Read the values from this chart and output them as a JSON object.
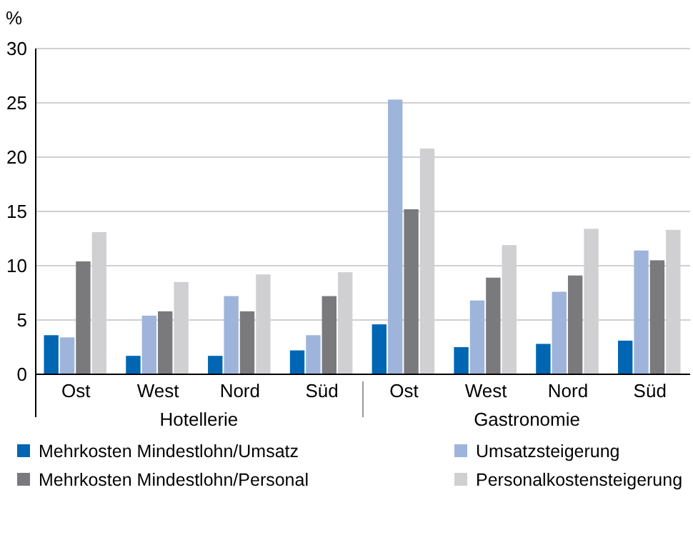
{
  "chart_data": {
    "type": "bar",
    "ylabel": "%",
    "categories": [
      "Ost",
      "West",
      "Nord",
      "Süd",
      "Ost",
      "West",
      "Nord",
      "Süd"
    ],
    "series": [
      {
        "name": "Mehrkosten Mindestlohn/Umsatz",
        "color": "#0066b3",
        "values": [
          3.6,
          1.7,
          1.7,
          2.2,
          4.6,
          2.5,
          2.8,
          3.1
        ]
      },
      {
        "name": "Umsatzsteigerung",
        "color": "#9fb4db",
        "values": [
          3.4,
          5.4,
          7.2,
          3.6,
          25.3,
          6.8,
          7.6,
          11.4
        ]
      },
      {
        "name": "Mehrkosten Mindestlohn/Personal",
        "color": "#7a7a7c",
        "values": [
          10.4,
          5.8,
          5.8,
          7.2,
          15.2,
          8.9,
          9.1,
          10.5
        ]
      },
      {
        "name": "Personalkostensteigerung",
        "color": "#d0d0d2",
        "values": [
          13.1,
          8.5,
          9.2,
          9.4,
          20.8,
          11.9,
          13.4,
          13.3
        ]
      }
    ],
    "annotations": [
      "Hotellerie",
      "Gastronomie"
    ],
    "ylim": [
      0,
      30
    ],
    "yticks": [
      0,
      5,
      10,
      15,
      20,
      25,
      30
    ],
    "grid": "y",
    "legend": "bottom"
  }
}
